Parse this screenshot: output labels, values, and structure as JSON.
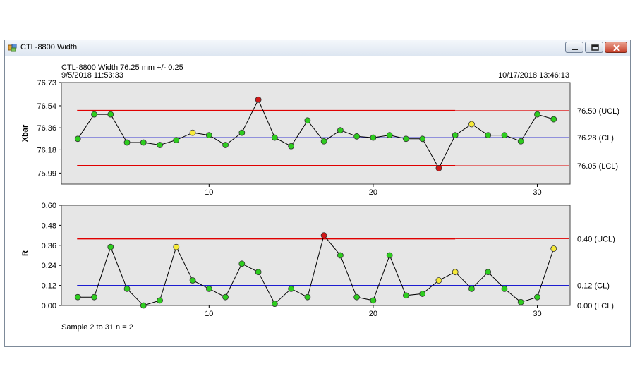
{
  "window": {
    "title": "CTL-8800 Width",
    "buttons": {
      "minimize": "minimize-icon",
      "maximize": "maximize-icon",
      "close": "close-icon"
    }
  },
  "header": {
    "line1": "CTL-8800 Width 76.25 mm +/- 0.25",
    "start_time": "9/5/2018 11:53:33",
    "end_time": "10/17/2018 13:46:13"
  },
  "footer": {
    "sample_text": "Sample 2 to 31  n = 2"
  },
  "colors": {
    "plot_bg": "#e6e6e6",
    "limit": "#e00000",
    "center": "#0000cc",
    "ok_point": "#2ecc1f",
    "warn_point": "#f6ea3a",
    "out_point": "#d11818"
  },
  "chart_data": [
    {
      "type": "line",
      "name": "xbar",
      "ylabel": "Xbar",
      "xlim": [
        1,
        32
      ],
      "ylim": [
        75.9,
        76.73
      ],
      "yticks": [
        76.73,
        76.54,
        76.36,
        76.18,
        75.99
      ],
      "ytick_labels": [
        "76.73",
        "76.54",
        "76.36",
        "76.18",
        "75.99"
      ],
      "xticks": [
        10,
        20,
        30
      ],
      "xtick_labels": [
        "10",
        "20",
        "30"
      ],
      "ucl": 76.5,
      "cl": 76.28,
      "lcl": 76.05,
      "limit_labels": {
        "ucl": "76.50 (UCL)",
        "cl": "76.28 (CL)",
        "lcl": "76.05 (LCL)"
      },
      "limit_bold_until": 25,
      "x": [
        2,
        3,
        4,
        5,
        6,
        7,
        8,
        9,
        10,
        11,
        12,
        13,
        14,
        15,
        16,
        17,
        18,
        19,
        20,
        21,
        22,
        23,
        24,
        25,
        26,
        27,
        28,
        29,
        30,
        31
      ],
      "values": [
        76.27,
        76.47,
        76.47,
        76.24,
        76.24,
        76.22,
        76.26,
        76.32,
        76.3,
        76.22,
        76.32,
        76.59,
        76.28,
        76.21,
        76.42,
        76.25,
        76.34,
        76.29,
        76.28,
        76.3,
        76.27,
        76.27,
        76.03,
        76.3,
        76.39,
        76.3,
        76.3,
        76.25,
        76.47,
        76.43
      ],
      "status": [
        "ok",
        "ok",
        "ok",
        "ok",
        "ok",
        "ok",
        "ok",
        "warn",
        "ok",
        "ok",
        "ok",
        "out",
        "ok",
        "ok",
        "ok",
        "ok",
        "ok",
        "ok",
        "ok",
        "ok",
        "ok",
        "ok",
        "out",
        "ok",
        "warn",
        "ok",
        "ok",
        "ok",
        "ok",
        "ok"
      ]
    },
    {
      "type": "line",
      "name": "range",
      "ylabel": "R",
      "xlim": [
        1,
        32
      ],
      "ylim": [
        0,
        0.6
      ],
      "yticks": [
        0.6,
        0.48,
        0.36,
        0.24,
        0.12,
        0.0
      ],
      "ytick_labels": [
        "0.60",
        "0.48",
        "0.36",
        "0.24",
        "0.12",
        "0.00"
      ],
      "xticks": [
        10,
        20,
        30
      ],
      "xtick_labels": [
        "10",
        "20",
        "30"
      ],
      "ucl": 0.4,
      "cl": 0.12,
      "lcl": 0.0,
      "limit_labels": {
        "ucl": "0.40 (UCL)",
        "cl": "0.12 (CL)",
        "lcl": "0.00 (LCL)"
      },
      "limit_bold_until": 25,
      "x": [
        2,
        3,
        4,
        5,
        6,
        7,
        8,
        9,
        10,
        11,
        12,
        13,
        14,
        15,
        16,
        17,
        18,
        19,
        20,
        21,
        22,
        23,
        24,
        25,
        26,
        27,
        28,
        29,
        30,
        31
      ],
      "values": [
        0.05,
        0.05,
        0.35,
        0.1,
        0.0,
        0.03,
        0.35,
        0.15,
        0.1,
        0.05,
        0.25,
        0.2,
        0.01,
        0.1,
        0.05,
        0.42,
        0.3,
        0.05,
        0.03,
        0.3,
        0.06,
        0.07,
        0.15,
        0.2,
        0.1,
        0.2,
        0.1,
        0.02,
        0.05,
        0.34
      ],
      "status": [
        "ok",
        "ok",
        "ok",
        "ok",
        "ok",
        "ok",
        "warn",
        "ok",
        "ok",
        "ok",
        "ok",
        "ok",
        "ok",
        "ok",
        "ok",
        "out",
        "ok",
        "ok",
        "ok",
        "ok",
        "ok",
        "ok",
        "warn",
        "warn",
        "ok",
        "ok",
        "ok",
        "ok",
        "ok",
        "warn"
      ]
    }
  ]
}
